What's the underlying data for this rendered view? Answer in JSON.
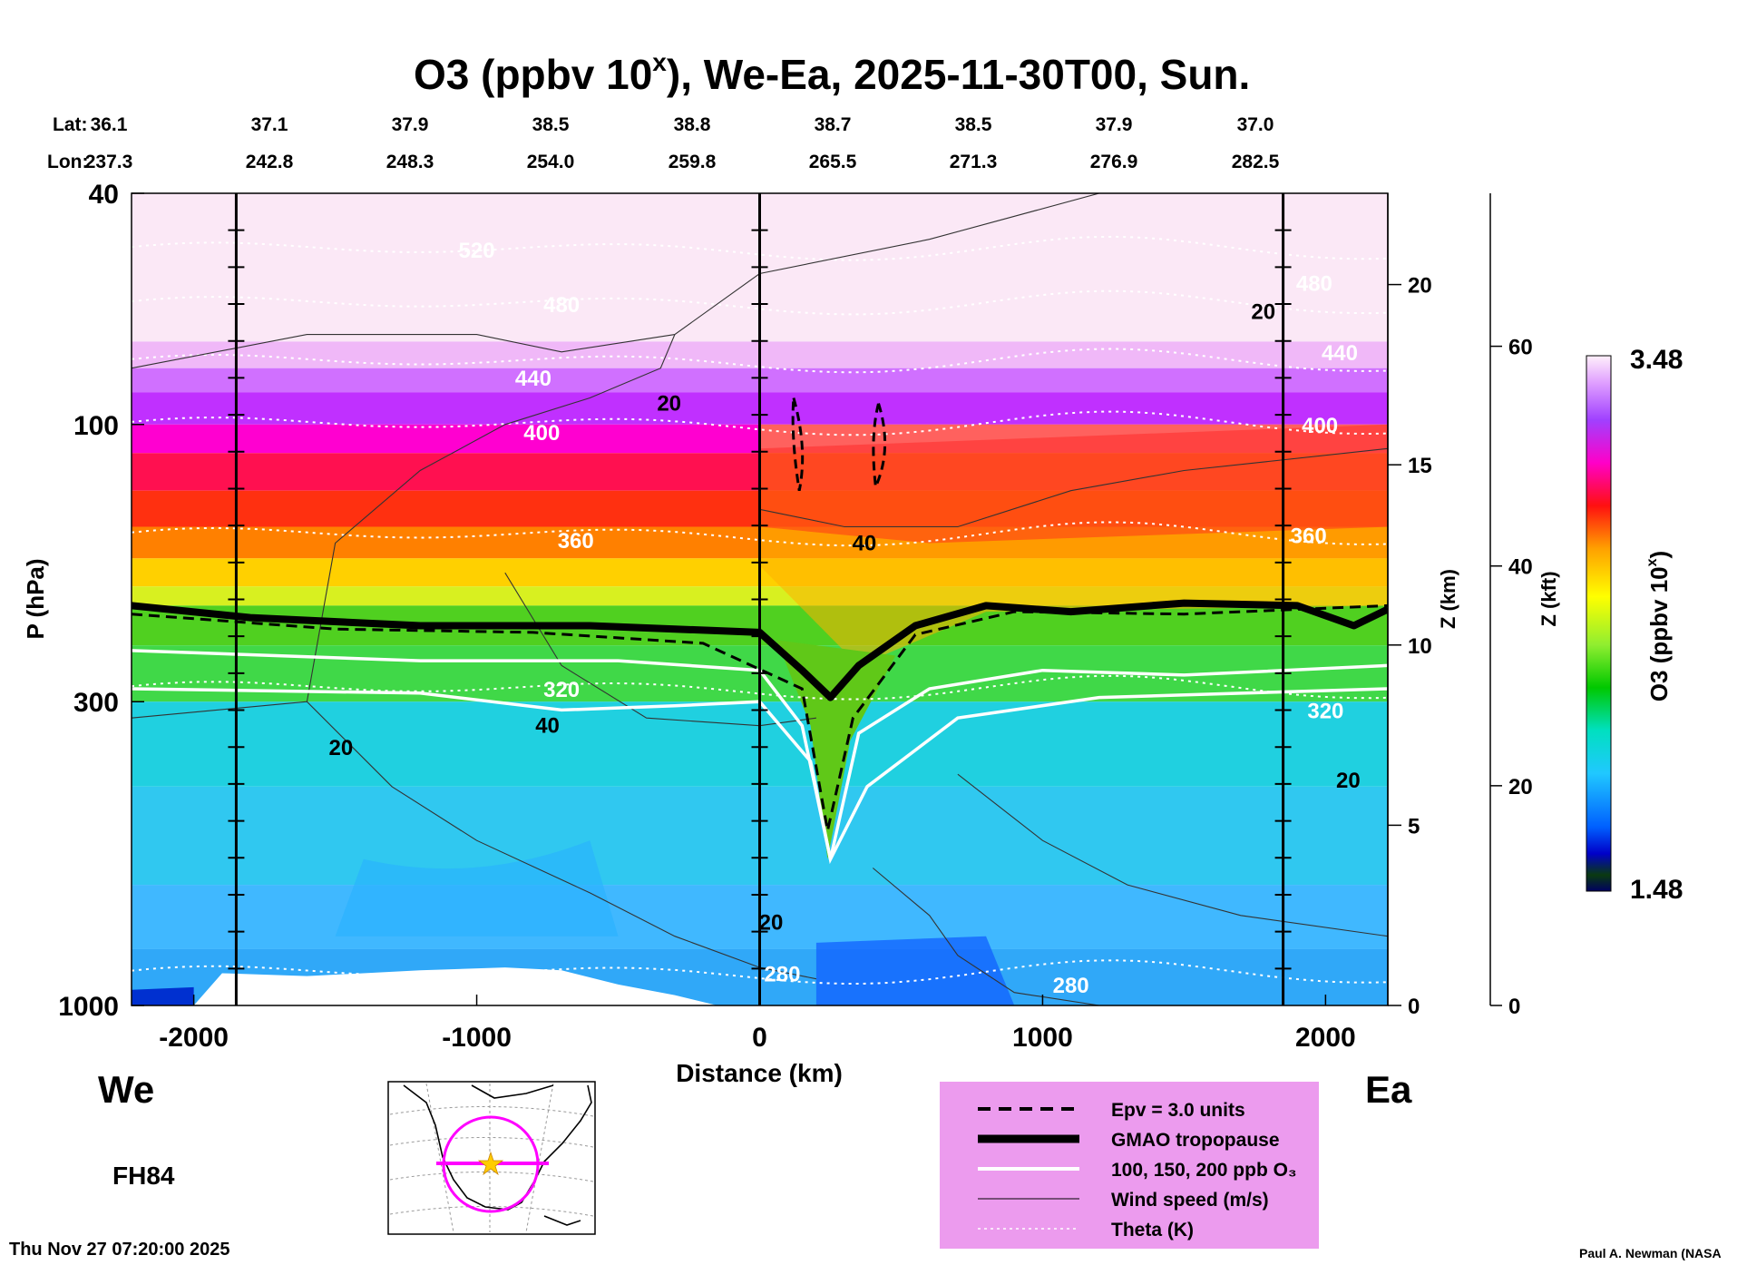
{
  "chart_data": {
    "type": "heatmap",
    "title": "O3 (ppbv 10",
    "title_sup": "x",
    "title_rest": "), We-Ea, 2025-11-30T00, Sun.",
    "xlabel": "Distance (km)",
    "ylabel": "P (hPa)",
    "z_km_label": "Z (km)",
    "z_kft_label": "Z (kft)",
    "colorbar_label": "O3 (ppbv 10",
    "colorbar_label_sup": "x",
    "colorbar_label_end": ")",
    "colorbar_max": "3.48",
    "colorbar_min": "1.48",
    "xlim": [
      -2220,
      2220
    ],
    "ylim_hpa": [
      1000,
      40
    ],
    "x_ticks": [
      -2000,
      -1000,
      0,
      1000,
      2000
    ],
    "x_tick_labels": [
      "-2000",
      "-1000",
      "0",
      "1000",
      "2000"
    ],
    "p_ticks": [
      {
        "value": 40,
        "label": "40"
      },
      {
        "value": 100,
        "label": "100"
      },
      {
        "value": 300,
        "label": "300"
      },
      {
        "value": 1000,
        "label": "1000"
      }
    ],
    "z_km_ticks": [
      "0",
      "5",
      "10",
      "15",
      "20"
    ],
    "z_kft_ticks": [
      "0",
      "20",
      "40",
      "60"
    ],
    "lat_label": "Lat:",
    "lon_label": "Lon:",
    "latlon": [
      {
        "lat": "36.1",
        "lon": "237.3",
        "x": -2220
      },
      {
        "lat": "37.1",
        "lon": "242.8",
        "x": -1725
      },
      {
        "lat": "37.9",
        "lon": "248.3",
        "x": -1230
      },
      {
        "lat": "38.5",
        "lon": "254.0",
        "x": -735
      },
      {
        "lat": "38.8",
        "lon": "259.8",
        "x": -240
      },
      {
        "lat": "38.7",
        "lon": "265.5",
        "x": 255
      },
      {
        "lat": "38.5",
        "lon": "271.3",
        "x": 750
      },
      {
        "lat": "37.9",
        "lon": "276.9",
        "x": 1245
      },
      {
        "lat": "37.0",
        "lon": "282.5",
        "x": 1740
      }
    ],
    "vertical_markers_km": [
      -1850,
      0,
      1850
    ],
    "tropopause_hpa": [
      {
        "x": -2220,
        "p": 205
      },
      {
        "x": -1800,
        "p": 215
      },
      {
        "x": -1200,
        "p": 222
      },
      {
        "x": -600,
        "p": 222
      },
      {
        "x": 0,
        "p": 228
      },
      {
        "x": 150,
        "p": 265
      },
      {
        "x": 250,
        "p": 295
      },
      {
        "x": 350,
        "p": 260
      },
      {
        "x": 550,
        "p": 222
      },
      {
        "x": 800,
        "p": 205
      },
      {
        "x": 1100,
        "p": 210
      },
      {
        "x": 1500,
        "p": 203
      },
      {
        "x": 1900,
        "p": 205
      },
      {
        "x": 2100,
        "p": 222
      },
      {
        "x": 2220,
        "p": 208
      }
    ],
    "epv_dashed_hpa": [
      {
        "x": -2220,
        "p": 212
      },
      {
        "x": -1500,
        "p": 225
      },
      {
        "x": -800,
        "p": 228
      },
      {
        "x": -200,
        "p": 238
      },
      {
        "x": 150,
        "p": 285
      },
      {
        "x": 240,
        "p": 500
      },
      {
        "x": 330,
        "p": 320
      },
      {
        "x": 550,
        "p": 230
      },
      {
        "x": 900,
        "p": 210
      },
      {
        "x": 1500,
        "p": 212
      },
      {
        "x": 2220,
        "p": 205
      }
    ],
    "ozone_white_contours_hpa": [
      [
        {
          "x": -2220,
          "p": 245
        },
        {
          "x": -1200,
          "p": 255
        },
        {
          "x": -500,
          "p": 255
        },
        {
          "x": 0,
          "p": 265
        },
        {
          "x": 150,
          "p": 330
        },
        {
          "x": 250,
          "p": 560
        },
        {
          "x": 350,
          "p": 340
        },
        {
          "x": 600,
          "p": 285
        },
        {
          "x": 1000,
          "p": 265
        },
        {
          "x": 1500,
          "p": 270
        },
        {
          "x": 2220,
          "p": 260
        }
      ],
      [
        {
          "x": -2220,
          "p": 285
        },
        {
          "x": -1200,
          "p": 290
        },
        {
          "x": -700,
          "p": 310
        },
        {
          "x": -300,
          "p": 305
        },
        {
          "x": 0,
          "p": 300
        },
        {
          "x": 180,
          "p": 380
        },
        {
          "x": 250,
          "p": 560
        },
        {
          "x": 380,
          "p": 420
        },
        {
          "x": 700,
          "p": 320
        },
        {
          "x": 1200,
          "p": 295
        },
        {
          "x": 2220,
          "p": 285
        }
      ]
    ],
    "theta_contours": [
      {
        "label": "520",
        "p": 50
      },
      {
        "label": "480",
        "p": 62
      },
      {
        "label": "440",
        "p": 78
      },
      {
        "label": "400",
        "p": 100
      },
      {
        "label": "360",
        "p": 155
      },
      {
        "label": "320",
        "p": 285
      },
      {
        "label": "280",
        "p": 880
      }
    ],
    "theta_label_positions": [
      {
        "label": "520",
        "x": -1000,
        "p": 50
      },
      {
        "label": "480",
        "x": -700,
        "p": 62
      },
      {
        "label": "440",
        "x": -800,
        "p": 83
      },
      {
        "label": "400",
        "x": -770,
        "p": 103
      },
      {
        "label": "360",
        "x": -650,
        "p": 158
      },
      {
        "label": "320",
        "x": -700,
        "p": 285
      },
      {
        "label": "280",
        "x": 80,
        "p": 880
      },
      {
        "label": "280",
        "x": 1100,
        "p": 920
      },
      {
        "label": "440",
        "x": 2050,
        "p": 75
      },
      {
        "label": "400",
        "x": 1980,
        "p": 100
      },
      {
        "label": "360",
        "x": 1940,
        "p": 155
      },
      {
        "label": "320",
        "x": 2000,
        "p": 310
      },
      {
        "label": "480",
        "x": 1960,
        "p": 57
      }
    ],
    "wind_labels": [
      {
        "label": "20",
        "x": -320,
        "p": 92
      },
      {
        "label": "20",
        "x": 1780,
        "p": 64
      },
      {
        "label": "40",
        "x": 370,
        "p": 160
      },
      {
        "label": "40",
        "x": -750,
        "p": 330
      },
      {
        "label": "20",
        "x": -1480,
        "p": 360
      },
      {
        "label": "20",
        "x": 40,
        "p": 720
      },
      {
        "label": "20",
        "x": 2080,
        "p": 410
      }
    ],
    "ozone_log10_range": [
      1.48,
      3.48
    ]
  },
  "side_labels": {
    "left": "We",
    "right": "Ea",
    "forecast_hour": "FH84"
  },
  "legend": {
    "items": [
      {
        "label": "Epv = 3.0 units",
        "style": "dashed"
      },
      {
        "label": "GMAO tropopause",
        "style": "thick"
      },
      {
        "label": "100, 150, 200 ppb O₃",
        "style": "white"
      },
      {
        "label": "Wind speed (m/s)",
        "style": "thin"
      },
      {
        "label": "Theta (K)",
        "style": "dotted"
      }
    ],
    "background": "#ec9bee"
  },
  "map_inset": {
    "circle_color": "#ff00ff",
    "star_color": "#ffcc00"
  },
  "footer": {
    "timestamp": "Thu Nov 27 07:20:00 2025",
    "credit": "Paul A. Newman (NASA"
  }
}
